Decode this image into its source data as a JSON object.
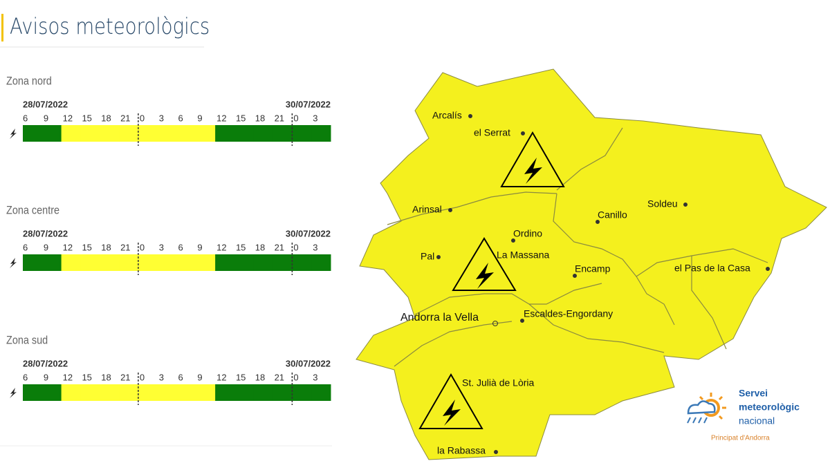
{
  "title": "Avisos meteorològics",
  "zones": [
    {
      "name": "Zona nord",
      "start_date": "28/07/2022",
      "end_date": "30/07/2022",
      "hours": [
        "6",
        "9",
        "12",
        "15",
        "18",
        "21",
        "0",
        "3",
        "6",
        "9",
        "12",
        "15",
        "18",
        "21",
        "0",
        "3"
      ],
      "levels": [
        "#0a7d0a",
        "#0a7d0a",
        "#ffff33",
        "#ffff33",
        "#ffff33",
        "#ffff33",
        "#ffff33",
        "#ffff33",
        "#ffff33",
        "#ffff33",
        "#0a7d0a",
        "#0a7d0a",
        "#0a7d0a",
        "#0a7d0a",
        "#0a7d0a",
        "#0a7d0a"
      ]
    },
    {
      "name": "Zona centre",
      "start_date": "28/07/2022",
      "end_date": "30/07/2022",
      "hours": [
        "6",
        "9",
        "12",
        "15",
        "18",
        "21",
        "0",
        "3",
        "6",
        "9",
        "12",
        "15",
        "18",
        "21",
        "0",
        "3"
      ],
      "levels": [
        "#0a7d0a",
        "#0a7d0a",
        "#ffff33",
        "#ffff33",
        "#ffff33",
        "#ffff33",
        "#ffff33",
        "#ffff33",
        "#ffff33",
        "#ffff33",
        "#0a7d0a",
        "#0a7d0a",
        "#0a7d0a",
        "#0a7d0a",
        "#0a7d0a",
        "#0a7d0a"
      ]
    },
    {
      "name": "Zona sud",
      "start_date": "28/07/2022",
      "end_date": "30/07/2022",
      "hours": [
        "6",
        "9",
        "12",
        "15",
        "18",
        "21",
        "0",
        "3",
        "6",
        "9",
        "12",
        "15",
        "18",
        "21",
        "0",
        "3"
      ],
      "levels": [
        "#0a7d0a",
        "#0a7d0a",
        "#ffff33",
        "#ffff33",
        "#ffff33",
        "#ffff33",
        "#ffff33",
        "#ffff33",
        "#ffff33",
        "#ffff33",
        "#0a7d0a",
        "#0a7d0a",
        "#0a7d0a",
        "#0a7d0a",
        "#0a7d0a",
        "#0a7d0a"
      ]
    }
  ],
  "map": {
    "places": [
      "Arcalís",
      "el Serrat",
      "Arinsal",
      "Ordino",
      "Pal",
      "La Massana",
      "Canillo",
      "Soldeu",
      "Encamp",
      "el Pas de la Casa",
      "Andorra la Vella",
      "Escaldes-Engordany",
      "St. Julià de Lòria",
      "la Rabassa"
    ]
  },
  "logo": {
    "line1": "Servei",
    "line2": "meteorològic",
    "line3": "nacional",
    "subtitle": "Principat d'Andorra"
  }
}
